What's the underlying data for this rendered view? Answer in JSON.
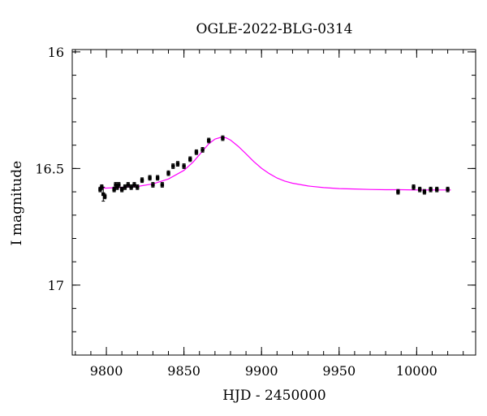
{
  "chart_data": {
    "type": "scatter",
    "title": "OGLE-2022-BLG-0314",
    "xlabel": "HJD - 2450000",
    "ylabel": "I magnitude",
    "xlim": [
      9778,
      10038
    ],
    "ylim": [
      17.3,
      15.99
    ],
    "y_inverted": true,
    "x_major_ticks": [
      9800,
      9850,
      9900,
      9950,
      10000
    ],
    "x_minor_step": 10,
    "y_major_ticks": [
      16,
      16.5,
      17
    ],
    "y_minor_step": 0.1,
    "x_tick_labels": [
      "9800",
      "9850",
      "9900",
      "9950",
      "10000"
    ],
    "y_tick_labels": [
      "16",
      "16.5",
      "17"
    ],
    "point_color": "#000000",
    "model_color": "#ff00ff",
    "series": [
      {
        "kind": "points",
        "x": [
          9796,
          9797,
          9798,
          9799,
          9805,
          9806,
          9807,
          9808,
          9810,
          9812,
          9814,
          9816,
          9818,
          9820,
          9823,
          9828,
          9830,
          9833,
          9836,
          9840,
          9843,
          9846,
          9850,
          9854,
          9858,
          9862,
          9866,
          9875,
          9988,
          9998,
          10002,
          10005,
          10009,
          10013,
          10020
        ],
        "y": [
          16.59,
          16.58,
          16.61,
          16.62,
          16.59,
          16.57,
          16.58,
          16.57,
          16.59,
          16.58,
          16.57,
          16.58,
          16.57,
          16.58,
          16.55,
          16.54,
          16.57,
          16.54,
          16.57,
          16.52,
          16.49,
          16.48,
          16.49,
          16.46,
          16.43,
          16.42,
          16.38,
          16.37,
          16.6,
          16.58,
          16.59,
          16.6,
          16.59,
          16.59,
          16.59
        ],
        "err": [
          0.01,
          0.01,
          0.03,
          0.01,
          0.01,
          0.01,
          0.01,
          0.01,
          0.01,
          0.01,
          0.01,
          0.01,
          0.01,
          0.01,
          0.01,
          0.01,
          0.01,
          0.01,
          0.01,
          0.01,
          0.01,
          0.01,
          0.01,
          0.01,
          0.01,
          0.01,
          0.01,
          0.01,
          0.01,
          0.01,
          0.01,
          0.01,
          0.01,
          0.01,
          0.01
        ]
      },
      {
        "kind": "model",
        "x": [
          9795,
          9800,
          9810,
          9820,
          9830,
          9840,
          9850,
          9856,
          9862,
          9866,
          9870,
          9874,
          9877,
          9880,
          9885,
          9890,
          9895,
          9900,
          9905,
          9910,
          9915,
          9920,
          9930,
          9940,
          9950,
          9960,
          9970,
          9980,
          9990,
          10000,
          10010,
          10022
        ],
        "y": [
          16.584,
          16.584,
          16.581,
          16.577,
          16.566,
          16.545,
          16.508,
          16.472,
          16.425,
          16.394,
          16.374,
          16.366,
          16.368,
          16.378,
          16.405,
          16.437,
          16.47,
          16.499,
          16.522,
          16.541,
          16.554,
          16.563,
          16.575,
          16.582,
          16.586,
          16.588,
          16.59,
          16.591,
          16.591,
          16.592,
          16.592,
          16.592
        ]
      }
    ]
  }
}
